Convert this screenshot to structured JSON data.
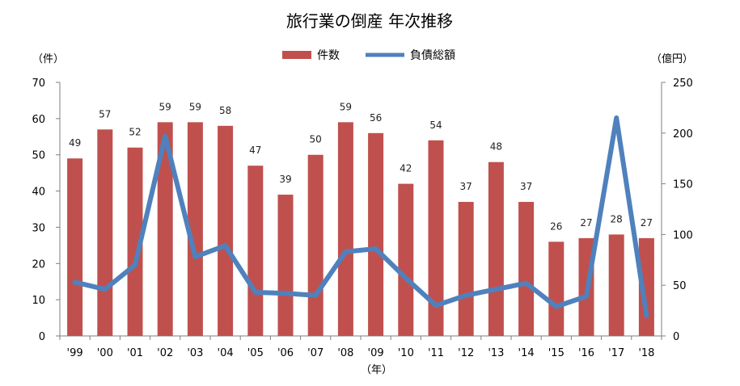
{
  "chart_data": {
    "type": "bar+line",
    "title": "旅行業の倒産 年次推移",
    "categories": [
      "'99",
      "'00",
      "'01",
      "'02",
      "'03",
      "'04",
      "'05",
      "'06",
      "'07",
      "'08",
      "'09",
      "'10",
      "'11",
      "'12",
      "'13",
      "'14",
      "'15",
      "'16",
      "'17",
      "'18"
    ],
    "series": [
      {
        "name": "件数",
        "type": "bar",
        "axis": "left",
        "color": "#C0504D",
        "values": [
          49,
          57,
          52,
          59,
          59,
          58,
          47,
          39,
          50,
          59,
          56,
          42,
          54,
          37,
          48,
          37,
          26,
          27,
          28,
          27
        ]
      },
      {
        "name": "負債総額",
        "type": "line",
        "axis": "right",
        "color": "#4F81BD",
        "values": [
          53,
          46,
          70,
          197,
          78,
          89,
          43,
          42,
          40,
          83,
          86,
          57,
          30,
          40,
          46,
          52,
          29,
          39,
          215,
          20
        ]
      }
    ],
    "y_left": {
      "label": "（件）",
      "min": 0,
      "max": 70,
      "ticks": [
        0,
        10,
        20,
        30,
        40,
        50,
        60,
        70
      ]
    },
    "y_right": {
      "label": "（億円）",
      "min": 0,
      "max": 250,
      "ticks": [
        0,
        50,
        100,
        150,
        200,
        250
      ]
    },
    "x_unit": "（年）",
    "grid": false,
    "legend": "top-center"
  }
}
